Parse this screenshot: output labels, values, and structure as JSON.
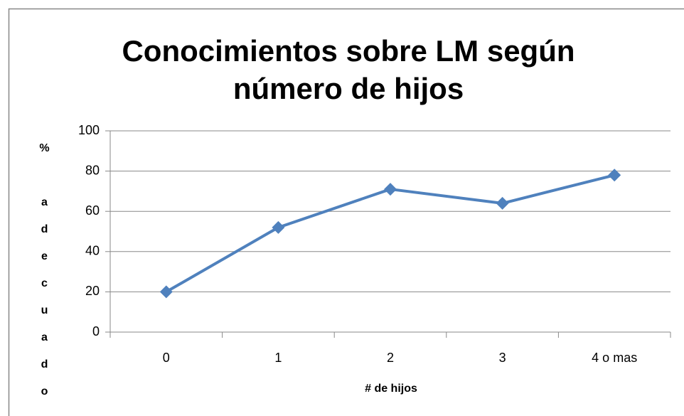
{
  "chart_data": {
    "type": "line",
    "title": [
      "Conocimientos sobre LM según",
      "número de hijos"
    ],
    "x_label": "# de hijos",
    "y_label": "% adecuado",
    "categories": [
      "0",
      "1",
      "2",
      "3",
      "4 o mas"
    ],
    "series": [
      {
        "name": "% adecuado",
        "color": "#4f81bd",
        "values": [
          20,
          52,
          71,
          64,
          78
        ]
      }
    ],
    "ylim": [
      0,
      100
    ],
    "yticks": [
      0,
      20,
      40,
      60,
      80,
      100
    ],
    "grid": true
  }
}
